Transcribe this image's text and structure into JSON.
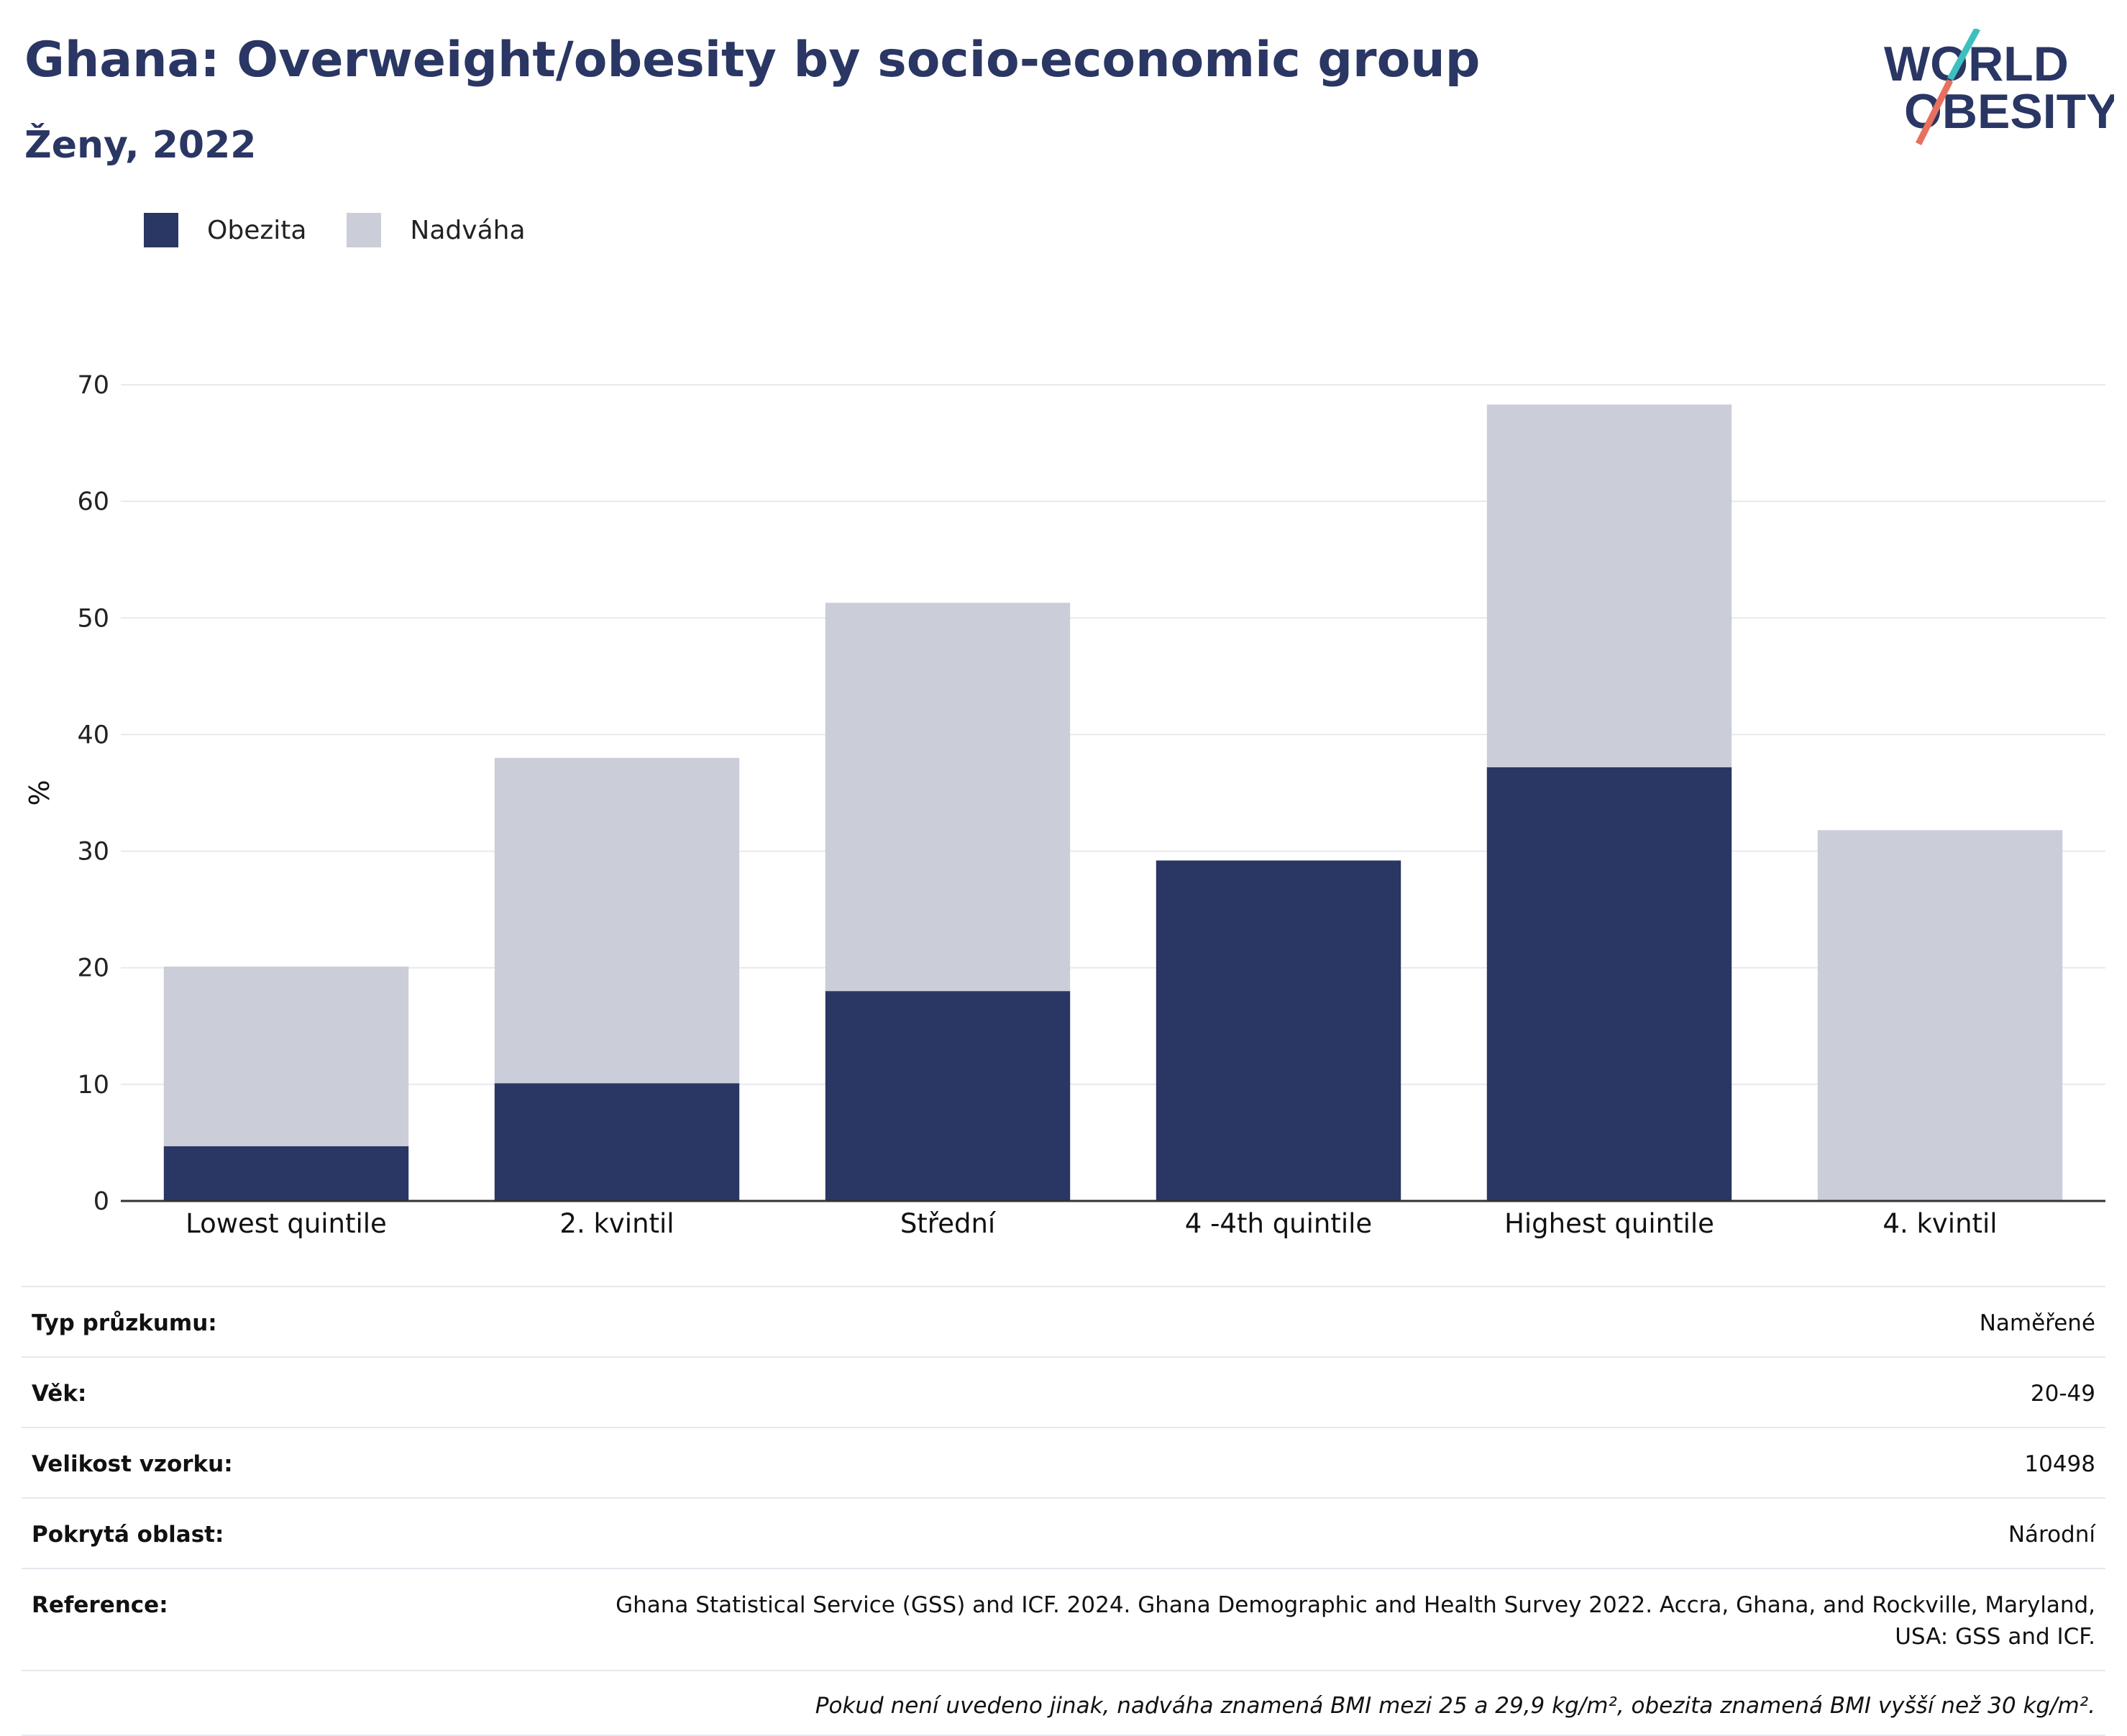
{
  "header": {
    "title": "Ghana: Overweight/obesity by socio-economic group",
    "subtitle": "Ženy, 2022"
  },
  "logo": {
    "line1": "WORLD",
    "line2": "OBESITY"
  },
  "colors": {
    "obesity": "#2a3663",
    "overweight": "#cbcdd8",
    "text": "#111111",
    "grid": "#e8e9ee"
  },
  "legend": [
    {
      "label": "Obezita",
      "color": "#2a3663"
    },
    {
      "label": "Nadváha",
      "color": "#cbcdd8"
    }
  ],
  "chart_data": {
    "type": "bar",
    "stacked": true,
    "categories": [
      "Lowest quintile",
      "2. kvintil",
      "Střední",
      "4 -4th quintile",
      "Highest quintile",
      "4. kvintil"
    ],
    "series": [
      {
        "name": "Obezita",
        "values": [
          4.7,
          10.1,
          18.0,
          29.2,
          37.2,
          0
        ]
      },
      {
        "name": "Nadváha",
        "values": [
          15.4,
          27.9,
          33.3,
          0,
          31.1,
          31.8
        ]
      }
    ],
    "ylabel": "%",
    "ylim": [
      0,
      70
    ],
    "yticks": [
      0,
      10,
      20,
      30,
      40,
      50,
      60,
      70
    ],
    "grid": true,
    "legend_position": "top-left"
  },
  "info": [
    {
      "key": "Typ průzkumu:",
      "value": "Naměřené"
    },
    {
      "key": "Věk:",
      "value": "20-49"
    },
    {
      "key": "Velikost vzorku:",
      "value": "10498"
    },
    {
      "key": "Pokrytá oblast:",
      "value": "Národní"
    },
    {
      "key": "Reference:",
      "value": "Ghana Statistical Service (GSS) and ICF. 2024. Ghana Demographic and Health Survey 2022. Accra, Ghana, and Rockville, Maryland, USA: GSS and ICF."
    }
  ],
  "footnote": "Pokud není uvedeno jinak, nadváha znamená BMI mezi 25 a 29,9 kg/m², obezita znamená BMI vyšší než 30 kg/m²."
}
